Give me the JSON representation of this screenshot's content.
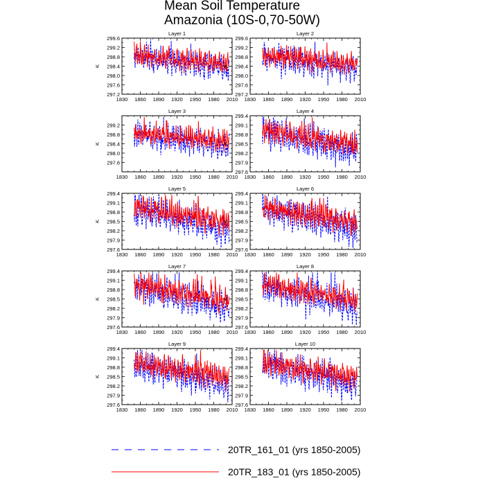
{
  "figure": {
    "title_line1": "Mean Soil Temperature",
    "title_line2": "Amazonia (10S-0,70-50W)"
  },
  "chart_data": {
    "type": "line",
    "ylabel": "K",
    "xticks": [
      "1830",
      "1860",
      "1890",
      "1920",
      "1950",
      "1980",
      "2010"
    ],
    "xlim": [
      1830,
      2010
    ],
    "x_start": 1850,
    "x_end": 2005,
    "legend": [
      {
        "name": "20TR_161_01 (yrs 1850-2005)",
        "color": "#0000ff",
        "style": "dashed"
      },
      {
        "name": "20TR_183_01 (yrs 1850-2005)",
        "color": "#ff0000",
        "style": "solid"
      }
    ],
    "panels": [
      {
        "title": "Layer 1",
        "ylim": [
          297.2,
          299.6
        ],
        "yticks": [
          "297.2",
          "297.6",
          "298.0",
          "298.4",
          "298.8",
          "299.2",
          "299.6"
        ],
        "series": [
          {
            "name": "20TR_161_01",
            "mean": 298.45,
            "amp": 0.85,
            "trend": -0.5,
            "seed": 11
          },
          {
            "name": "20TR_183_01",
            "mean": 298.5,
            "amp": 0.7,
            "trend": -0.35,
            "seed": 23
          }
        ]
      },
      {
        "title": "Layer 2",
        "ylim": [
          297.2,
          299.6
        ],
        "yticks": [
          "297.2",
          "297.6",
          "298.0",
          "298.4",
          "298.8",
          "299.2",
          "299.6"
        ],
        "series": [
          {
            "name": "20TR_161_01",
            "mean": 298.45,
            "amp": 0.85,
            "trend": -0.55,
            "seed": 12
          },
          {
            "name": "20TR_183_01",
            "mean": 298.5,
            "amp": 0.7,
            "trend": -0.4,
            "seed": 24
          }
        ]
      },
      {
        "title": "Layer 3",
        "ylim": [
          297.2,
          299.6
        ],
        "yticks": [
          "297.6",
          "298.0",
          "298.4",
          "298.8",
          "299.2"
        ],
        "series": [
          {
            "name": "20TR_161_01",
            "mean": 298.45,
            "amp": 0.85,
            "trend": -0.55,
            "seed": 13
          },
          {
            "name": "20TR_183_01",
            "mean": 298.5,
            "amp": 0.7,
            "trend": -0.4,
            "seed": 25
          }
        ]
      },
      {
        "title": "Layer 4",
        "ylim": [
          297.6,
          299.4
        ],
        "yticks": [
          "297.6",
          "297.9",
          "298.2",
          "298.5",
          "298.8",
          "299.1",
          "299.4"
        ],
        "series": [
          {
            "name": "20TR_161_01",
            "mean": 298.55,
            "amp": 0.75,
            "trend": -0.7,
            "seed": 14
          },
          {
            "name": "20TR_183_01",
            "mean": 298.6,
            "amp": 0.6,
            "trend": -0.5,
            "seed": 26
          }
        ]
      },
      {
        "title": "Layer 5",
        "ylim": [
          297.6,
          299.4
        ],
        "yticks": [
          "297.6",
          "297.9",
          "298.2",
          "298.5",
          "298.8",
          "299.1",
          "299.4"
        ],
        "series": [
          {
            "name": "20TR_161_01",
            "mean": 298.55,
            "amp": 0.75,
            "trend": -0.7,
            "seed": 15
          },
          {
            "name": "20TR_183_01",
            "mean": 298.6,
            "amp": 0.6,
            "trend": -0.5,
            "seed": 27
          }
        ]
      },
      {
        "title": "Layer 6",
        "ylim": [
          297.6,
          299.4
        ],
        "yticks": [
          "297.6",
          "297.9",
          "298.2",
          "298.5",
          "298.8",
          "299.1",
          "299.4"
        ],
        "series": [
          {
            "name": "20TR_161_01",
            "mean": 298.55,
            "amp": 0.75,
            "trend": -0.7,
            "seed": 16
          },
          {
            "name": "20TR_183_01",
            "mean": 298.6,
            "amp": 0.6,
            "trend": -0.5,
            "seed": 28
          }
        ]
      },
      {
        "title": "Layer 7",
        "ylim": [
          297.6,
          299.4
        ],
        "yticks": [
          "297.6",
          "297.9",
          "298.2",
          "298.5",
          "298.8",
          "299.1",
          "299.4"
        ],
        "series": [
          {
            "name": "20TR_161_01",
            "mean": 298.55,
            "amp": 0.75,
            "trend": -0.7,
            "seed": 17
          },
          {
            "name": "20TR_183_01",
            "mean": 298.6,
            "amp": 0.6,
            "trend": -0.5,
            "seed": 29
          }
        ]
      },
      {
        "title": "Layer 8",
        "ylim": [
          297.6,
          299.4
        ],
        "yticks": [
          "297.6",
          "297.9",
          "298.2",
          "298.5",
          "298.8",
          "299.1",
          "299.4"
        ],
        "series": [
          {
            "name": "20TR_161_01",
            "mean": 298.55,
            "amp": 0.75,
            "trend": -0.7,
            "seed": 18
          },
          {
            "name": "20TR_183_01",
            "mean": 298.6,
            "amp": 0.6,
            "trend": -0.5,
            "seed": 30
          }
        ]
      },
      {
        "title": "Layer 9",
        "ylim": [
          297.6,
          299.4
        ],
        "yticks": [
          "297.6",
          "297.9",
          "298.2",
          "298.5",
          "298.8",
          "299.1",
          "299.4"
        ],
        "series": [
          {
            "name": "20TR_161_01",
            "mean": 298.55,
            "amp": 0.75,
            "trend": -0.7,
            "seed": 19
          },
          {
            "name": "20TR_183_01",
            "mean": 298.6,
            "amp": 0.6,
            "trend": -0.5,
            "seed": 31
          }
        ]
      },
      {
        "title": "Layer 10",
        "ylim": [
          297.6,
          299.4
        ],
        "yticks": [
          "297.6",
          "297.9",
          "298.2",
          "298.5",
          "298.8",
          "299.1",
          "299.4"
        ],
        "series": [
          {
            "name": "20TR_161_01",
            "mean": 298.55,
            "amp": 0.75,
            "trend": -0.7,
            "seed": 20
          },
          {
            "name": "20TR_183_01",
            "mean": 298.6,
            "amp": 0.6,
            "trend": -0.5,
            "seed": 32
          }
        ]
      }
    ]
  }
}
